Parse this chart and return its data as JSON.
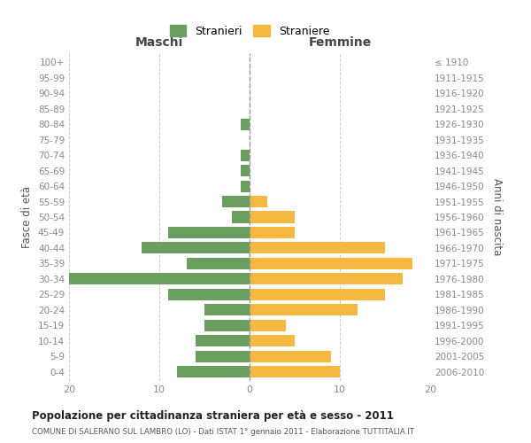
{
  "age_groups": [
    "0-4",
    "5-9",
    "10-14",
    "15-19",
    "20-24",
    "25-29",
    "30-34",
    "35-39",
    "40-44",
    "45-49",
    "50-54",
    "55-59",
    "60-64",
    "65-69",
    "70-74",
    "75-79",
    "80-84",
    "85-89",
    "90-94",
    "95-99",
    "100+"
  ],
  "birth_years": [
    "2006-2010",
    "2001-2005",
    "1996-2000",
    "1991-1995",
    "1986-1990",
    "1981-1985",
    "1976-1980",
    "1971-1975",
    "1966-1970",
    "1961-1965",
    "1956-1960",
    "1951-1955",
    "1946-1950",
    "1941-1945",
    "1936-1940",
    "1931-1935",
    "1926-1930",
    "1921-1925",
    "1916-1920",
    "1911-1915",
    "≤ 1910"
  ],
  "maschi": [
    8,
    6,
    6,
    5,
    5,
    9,
    20,
    7,
    12,
    9,
    2,
    3,
    1,
    1,
    1,
    0,
    1,
    0,
    0,
    0,
    0
  ],
  "femmine": [
    10,
    9,
    5,
    4,
    12,
    15,
    17,
    18,
    15,
    5,
    5,
    2,
    0,
    0,
    0,
    0,
    0,
    0,
    0,
    0,
    0
  ],
  "color_maschi": "#6a9e5e",
  "color_femmine": "#f5b942",
  "title": "Popolazione per cittadinanza straniera per età e sesso - 2011",
  "subtitle": "COMUNE DI SALERANO SUL LAMBRO (LO) - Dati ISTAT 1° gennaio 2011 - Elaborazione TUTTITALIA.IT",
  "xlabel_left": "Maschi",
  "xlabel_right": "Femmine",
  "ylabel_left": "Fasce di età",
  "ylabel_right": "Anni di nascita",
  "legend_maschi": "Stranieri",
  "legend_femmine": "Straniere",
  "xlim": 20,
  "background_color": "#ffffff",
  "grid_color": "#cccccc"
}
